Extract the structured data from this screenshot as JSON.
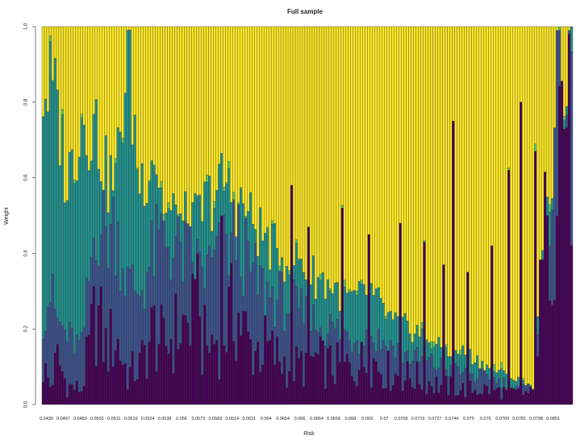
{
  "colors": {
    "series1": "#440154",
    "series2": "#3B528B",
    "series3": "#21908C",
    "series4": "#5DC863",
    "series5": "#FDE725",
    "outline": "#333333"
  },
  "chart_data": {
    "type": "bar",
    "stacked": true,
    "title": "Full sample",
    "xlabel": "Risk",
    "ylabel": "Weight",
    "ylim": [
      0,
      1
    ],
    "yticks": [
      "0.0",
      "0.2",
      "0.4",
      "0.6",
      "0.8",
      "1.0"
    ],
    "grid": false,
    "legend": "none",
    "bar_count": 220,
    "x_tick_labels": [
      "0.0439",
      "0.0467",
      "0.0483",
      "0.0502",
      "0.0511",
      "0.0519",
      "0.0524",
      "0.0538",
      "0.056",
      "0.0573",
      "0.0583",
      "0.0614",
      "0.0631",
      "0.064",
      "0.0654",
      "0.066",
      "0.0664",
      "0.0668",
      "0.068",
      "0.069",
      "0.07",
      "0.0709",
      "0.0719",
      "0.0727",
      "0.0744",
      "0.075",
      "0.076",
      "0.0769",
      "0.0781",
      "0.0798",
      "0.0851"
    ],
    "x_tick_bar_index": [
      0,
      7,
      14,
      21,
      28,
      35,
      42,
      49,
      56,
      63,
      70,
      77,
      84,
      91,
      98,
      105,
      112,
      119,
      126,
      133,
      140,
      147,
      154,
      161,
      168,
      175,
      182,
      189,
      196,
      203,
      210
    ],
    "anchors": [
      {
        "i": 0,
        "s1": 0.1,
        "s2": 0.24,
        "s3": 0.85
      },
      {
        "i": 3,
        "s1": 0.05,
        "s2": 0.3,
        "s3": 0.86
      },
      {
        "i": 6,
        "s1": 0.12,
        "s2": 0.22,
        "s3": 0.8
      },
      {
        "i": 10,
        "s1": 0.05,
        "s2": 0.18,
        "s3": 0.6
      },
      {
        "i": 16,
        "s1": 0.04,
        "s2": 0.15,
        "s3": 0.78
      },
      {
        "i": 22,
        "s1": 0.25,
        "s2": 0.5,
        "s3": 0.75
      },
      {
        "i": 26,
        "s1": 0.15,
        "s2": 0.45,
        "s3": 0.62
      },
      {
        "i": 30,
        "s1": 0.18,
        "s2": 0.48,
        "s3": 0.6
      },
      {
        "i": 35,
        "s1": 0.08,
        "s2": 0.32,
        "s3": 0.95
      },
      {
        "i": 40,
        "s1": 0.1,
        "s2": 0.3,
        "s3": 0.6
      },
      {
        "i": 46,
        "s1": 0.2,
        "s2": 0.4,
        "s3": 0.7
      },
      {
        "i": 50,
        "s1": 0.15,
        "s2": 0.45,
        "s3": 0.52
      },
      {
        "i": 56,
        "s1": 0.2,
        "s2": 0.4,
        "s3": 0.5
      },
      {
        "i": 62,
        "s1": 0.22,
        "s2": 0.38,
        "s3": 0.48
      },
      {
        "i": 68,
        "s1": 0.15,
        "s2": 0.35,
        "s3": 0.55
      },
      {
        "i": 75,
        "s1": 0.2,
        "s2": 0.4,
        "s3": 0.6
      },
      {
        "i": 80,
        "s1": 0.25,
        "s2": 0.45,
        "s3": 0.55
      },
      {
        "i": 86,
        "s1": 0.15,
        "s2": 0.35,
        "s3": 0.5
      },
      {
        "i": 92,
        "s1": 0.15,
        "s2": 0.3,
        "s3": 0.45
      },
      {
        "i": 98,
        "s1": 0.12,
        "s2": 0.28,
        "s3": 0.4
      },
      {
        "i": 105,
        "s1": 0.1,
        "s2": 0.25,
        "s3": 0.4
      },
      {
        "i": 112,
        "s1": 0.12,
        "s2": 0.22,
        "s3": 0.35
      },
      {
        "i": 120,
        "s1": 0.1,
        "s2": 0.2,
        "s3": 0.32
      },
      {
        "i": 128,
        "s1": 0.1,
        "s2": 0.18,
        "s3": 0.28
      },
      {
        "i": 136,
        "s1": 0.12,
        "s2": 0.18,
        "s3": 0.3
      },
      {
        "i": 145,
        "s1": 0.08,
        "s2": 0.15,
        "s3": 0.22
      },
      {
        "i": 155,
        "s1": 0.07,
        "s2": 0.12,
        "s3": 0.2
      },
      {
        "i": 165,
        "s1": 0.05,
        "s2": 0.1,
        "s3": 0.15
      },
      {
        "i": 175,
        "s1": 0.04,
        "s2": 0.08,
        "s3": 0.14
      },
      {
        "i": 185,
        "s1": 0.04,
        "s2": 0.07,
        "s3": 0.1
      },
      {
        "i": 195,
        "s1": 0.03,
        "s2": 0.05,
        "s3": 0.07
      },
      {
        "i": 203,
        "s1": 0.03,
        "s2": 0.04,
        "s3": 0.05
      },
      {
        "i": 208,
        "s1": 0.4,
        "s2": 0.42,
        "s3": 0.45
      },
      {
        "i": 214,
        "s1": 0.8,
        "s2": 0.84,
        "s3": 0.87
      },
      {
        "i": 219,
        "s1": 0.85,
        "s2": 0.88,
        "s3": 0.9
      }
    ],
    "spikes": [
      {
        "i": 64,
        "s1": 0.4
      },
      {
        "i": 74,
        "s1": 0.5
      },
      {
        "i": 103,
        "s1": 0.58
      },
      {
        "i": 110,
        "s1": 0.47
      },
      {
        "i": 124,
        "s1": 0.52
      },
      {
        "i": 135,
        "s1": 0.45
      },
      {
        "i": 148,
        "s1": 0.48
      },
      {
        "i": 158,
        "s1": 0.43
      },
      {
        "i": 166,
        "s1": 0.37
      },
      {
        "i": 170,
        "s1": 0.75
      },
      {
        "i": 176,
        "s1": 0.35
      },
      {
        "i": 186,
        "s1": 0.42
      },
      {
        "i": 193,
        "s1": 0.62
      },
      {
        "i": 198,
        "s1": 0.8
      },
      {
        "i": 204,
        "s1": 0.67
      },
      {
        "i": 209,
        "s1": 0.5
      }
    ]
  }
}
